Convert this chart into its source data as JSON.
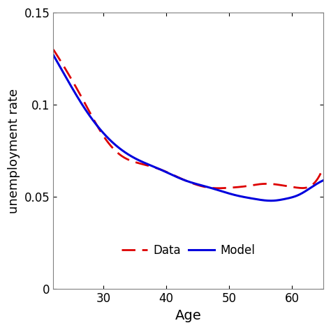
{
  "title": "",
  "xlabel": "Age",
  "ylabel": "unemployment rate",
  "xlim": [
    22,
    65
  ],
  "ylim": [
    0,
    0.15
  ],
  "xticks": [
    30,
    40,
    50,
    60
  ],
  "yticks": [
    0,
    0.05,
    0.1,
    0.15
  ],
  "model_color": "#0000dd",
  "data_color": "#dd0000",
  "model_linewidth": 2.2,
  "data_linewidth": 2.0,
  "legend_labels": [
    "Model",
    "Data"
  ],
  "background_color": "#ffffff",
  "age_start": 22,
  "age_end": 65,
  "model_ctrl_ages": [
    22,
    24,
    27,
    31,
    35,
    39,
    43,
    47,
    51,
    54,
    57,
    59,
    61,
    63,
    65
  ],
  "model_ctrl_vals": [
    0.127,
    0.115,
    0.098,
    0.081,
    0.071,
    0.065,
    0.059,
    0.055,
    0.051,
    0.049,
    0.048,
    0.049,
    0.051,
    0.055,
    0.059
  ],
  "data_ctrl_ages": [
    22,
    24,
    27,
    30,
    33,
    36,
    39,
    43,
    47,
    50,
    53,
    55,
    57,
    59,
    61,
    63,
    65
  ],
  "data_ctrl_vals": [
    0.13,
    0.119,
    0.101,
    0.083,
    0.072,
    0.068,
    0.065,
    0.059,
    0.055,
    0.055,
    0.056,
    0.057,
    0.057,
    0.056,
    0.055,
    0.056,
    0.066
  ]
}
